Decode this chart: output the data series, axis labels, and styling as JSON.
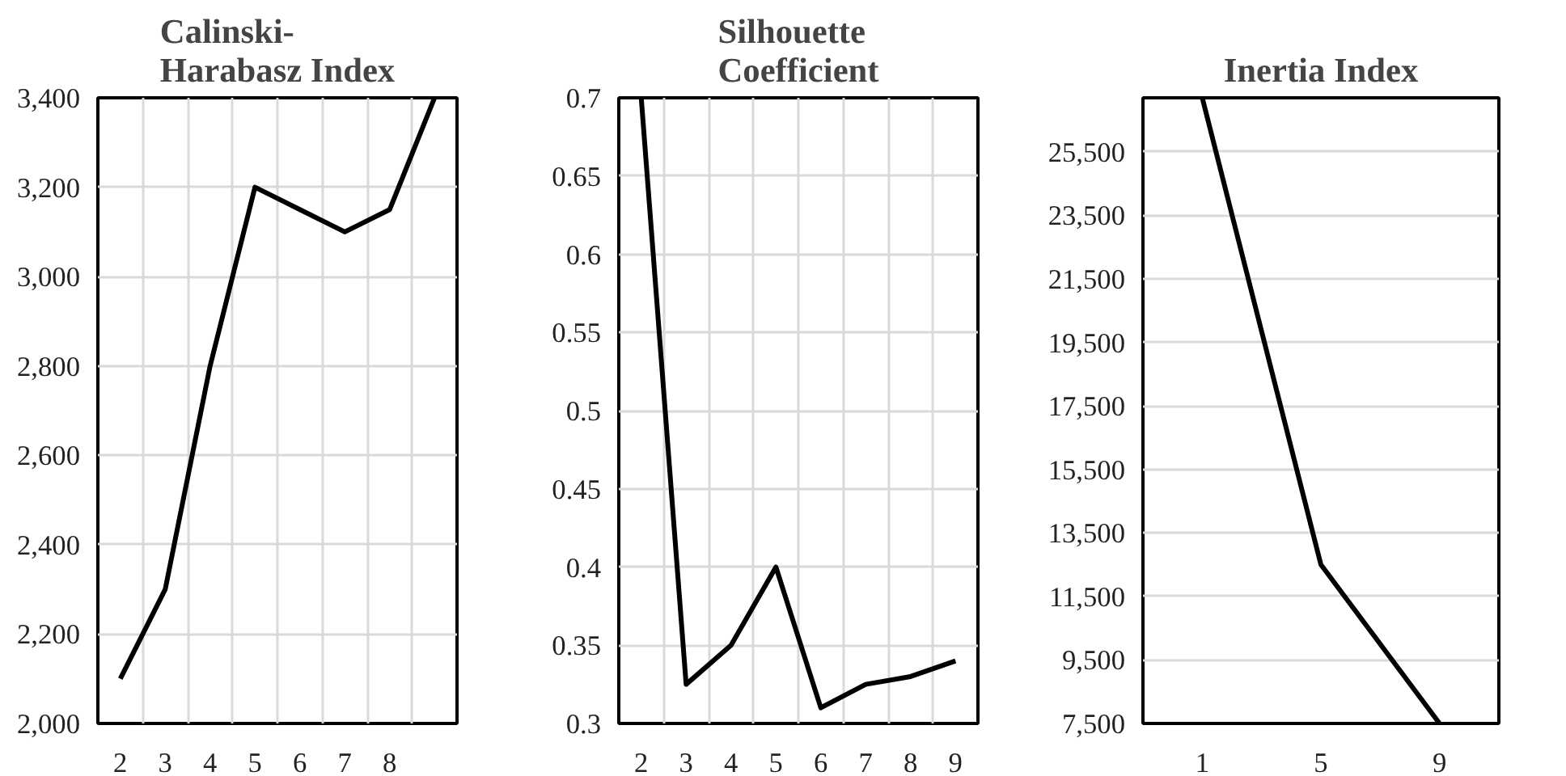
{
  "chart_data": [
    {
      "type": "line",
      "title": "Calinski-\nHarabasz Index",
      "categories": [
        "2",
        "3",
        "4",
        "5",
        "6",
        "7",
        "8",
        null
      ],
      "series": [
        {
          "color": "#000000",
          "values": [
            2100,
            2300,
            2800,
            3200,
            3150,
            3100,
            3150,
            3400
          ]
        }
      ],
      "ylim": [
        2000,
        3400
      ],
      "yticks": [
        {
          "value": 2000,
          "label": "2,000"
        },
        {
          "value": 2200,
          "label": "2,200"
        },
        {
          "value": 2400,
          "label": "2,400"
        },
        {
          "value": 2600,
          "label": "2,600"
        },
        {
          "value": 2800,
          "label": "2,800"
        },
        {
          "value": 3000,
          "label": "3,000"
        },
        {
          "value": 3200,
          "label": "3,200"
        },
        {
          "value": 3400,
          "label": "3,400"
        }
      ],
      "grid": true,
      "line_style": "solid"
    },
    {
      "type": "line",
      "title": "Silhouette\nCoefficient",
      "categories": [
        "2",
        "3",
        "4",
        "5",
        "6",
        "7",
        "8",
        "9"
      ],
      "series": [
        {
          "color": "#000000",
          "values": [
            0.7,
            0.325,
            0.35,
            0.4,
            0.31,
            0.325,
            0.33,
            0.34
          ]
        }
      ],
      "ylim": [
        0.3,
        0.7
      ],
      "yticks": [
        {
          "value": 0.3,
          "label": "0.3"
        },
        {
          "value": 0.35,
          "label": "0.35"
        },
        {
          "value": 0.4,
          "label": "0.4"
        },
        {
          "value": 0.45,
          "label": "0.45"
        },
        {
          "value": 0.5,
          "label": "0.5"
        },
        {
          "value": 0.55,
          "label": "0.55"
        },
        {
          "value": 0.6,
          "label": "0.6"
        },
        {
          "value": 0.65,
          "label": "0.65"
        },
        {
          "value": 0.7,
          "label": "0.7"
        }
      ],
      "grid": true,
      "line_style": "solid"
    },
    {
      "type": "line",
      "title": "Inertia Index",
      "x": [
        1,
        5,
        9
      ],
      "series": [
        {
          "color": "#000000",
          "values": [
            27200,
            12500,
            7500
          ]
        }
      ],
      "xlim": [
        -1,
        11
      ],
      "xticks": [
        1,
        5,
        9
      ],
      "ylim": [
        7500,
        27200
      ],
      "yticks": [
        {
          "value": 7500,
          "label": "7,500"
        },
        {
          "value": 9500,
          "label": "9,500"
        },
        {
          "value": 11500,
          "label": "11,500"
        },
        {
          "value": 13500,
          "label": "13,500"
        },
        {
          "value": 15500,
          "label": "15,500"
        },
        {
          "value": 17500,
          "label": "17,500"
        },
        {
          "value": 19500,
          "label": "19,500"
        },
        {
          "value": 21500,
          "label": "21,500"
        },
        {
          "value": 23500,
          "label": "23,500"
        },
        {
          "value": 25500,
          "label": "25,500"
        }
      ],
      "grid": "y",
      "line_style": "solid"
    }
  ]
}
